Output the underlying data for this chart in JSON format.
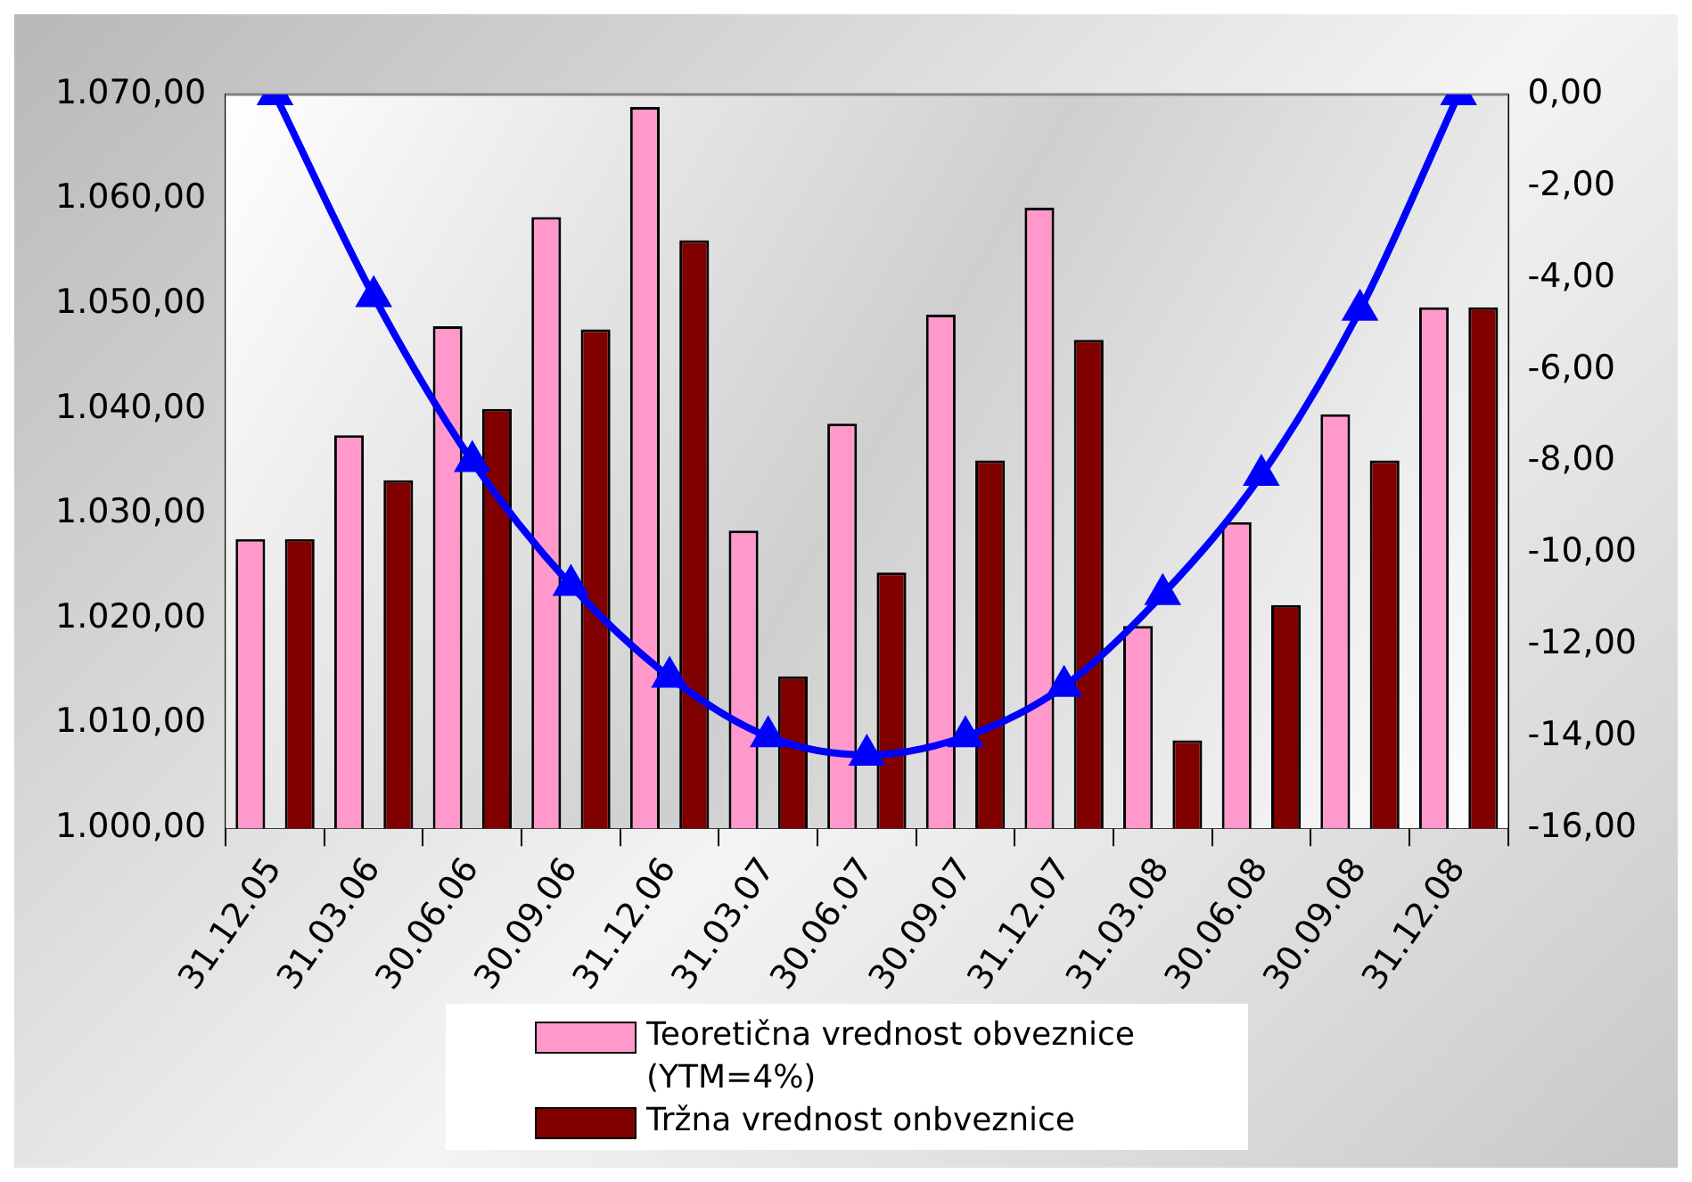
{
  "chart_data": {
    "type": "bar",
    "categories": [
      "31.12.05",
      "31.03.06",
      "30.06.06",
      "30.09.06",
      "31.12.06",
      "31.03.07",
      "30.06.07",
      "30.09.07",
      "31.12.07",
      "31.03.08",
      "30.06.08",
      "30.09.08",
      "31.12.08"
    ],
    "series": [
      {
        "name": "Teoretična vrednost obveznice (YTM=4%)",
        "color": "#ff99cc",
        "values": [
          1027.6,
          1037.5,
          1047.9,
          1058.3,
          1068.8,
          1028.4,
          1038.6,
          1049.0,
          1059.2,
          1019.3,
          1029.2,
          1039.5,
          1049.7
        ]
      },
      {
        "name": "Tržna vrednost onbveznice",
        "color": "#800000",
        "values": [
          1027.6,
          1033.2,
          1040.0,
          1047.6,
          1056.1,
          1014.5,
          1024.4,
          1035.1,
          1046.6,
          1008.4,
          1021.3,
          1035.1,
          1049.7
        ]
      },
      {
        "type": "line",
        "axis": "y2",
        "color": "#0000ff",
        "marker": "triangle",
        "values": [
          0,
          -4.4,
          -8.0,
          -10.7,
          -12.7,
          -14.0,
          -14.4,
          -14.0,
          -12.9,
          -10.9,
          -8.3,
          -4.7,
          0
        ]
      }
    ],
    "ylim": [
      1000,
      1070
    ],
    "yticks": [
      {
        "value": 1000,
        "label": "1.000,00"
      },
      {
        "value": 1010,
        "label": "1.010,00"
      },
      {
        "value": 1020,
        "label": "1.020,00"
      },
      {
        "value": 1030,
        "label": "1.030,00"
      },
      {
        "value": 1040,
        "label": "1.040,00"
      },
      {
        "value": 1050,
        "label": "1.050,00"
      },
      {
        "value": 1060,
        "label": "1.060,00"
      },
      {
        "value": 1070,
        "label": "1.070,00"
      }
    ],
    "y2lim": [
      -16,
      0
    ],
    "y2ticks": [
      {
        "value": -16,
        "label": "-16,00"
      },
      {
        "value": -14,
        "label": "-14,00"
      },
      {
        "value": -12,
        "label": "-12,00"
      },
      {
        "value": -10,
        "label": "-10,00"
      },
      {
        "value": -8,
        "label": "-8,00"
      },
      {
        "value": -6,
        "label": "-6,00"
      },
      {
        "value": -4,
        "label": "-4,00"
      },
      {
        "value": -2,
        "label": "-2,00"
      },
      {
        "value": 0,
        "label": "0,00"
      }
    ],
    "legend": "bottom"
  }
}
